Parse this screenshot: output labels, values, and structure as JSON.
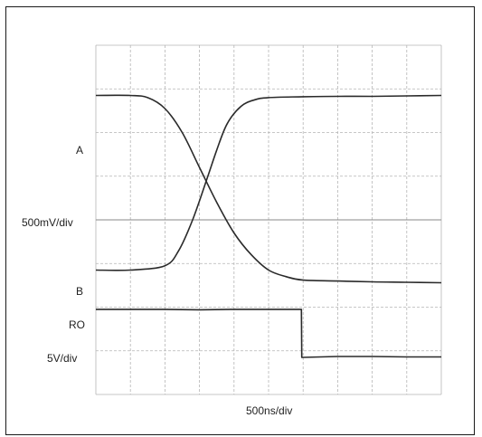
{
  "chart_data": {
    "type": "line",
    "title": "",
    "xlabel": "500ns/div",
    "grid": true,
    "divisions": {
      "horizontal": 10,
      "vertical": 8
    },
    "xlim": [
      0,
      10
    ],
    "ylim": [
      0,
      8
    ],
    "channel_labels": {
      "a": "A",
      "scale_diff": "500mV/div",
      "b": "B",
      "ro": "RO",
      "scale_logic": "5V/div"
    },
    "series": [
      {
        "name": "A",
        "x": [
          0,
          1,
          1.5,
          2,
          2.5,
          3,
          3.5,
          4,
          4.5,
          5,
          5.5,
          6,
          7,
          8,
          9,
          10
        ],
        "y": [
          6.85,
          6.85,
          6.8,
          6.55,
          6.0,
          5.2,
          4.4,
          3.7,
          3.2,
          2.85,
          2.7,
          2.62,
          2.6,
          2.58,
          2.57,
          2.56
        ]
      },
      {
        "name": "B",
        "x": [
          0,
          1,
          2,
          2.4,
          2.8,
          3.2,
          3.5,
          3.8,
          4.2,
          4.6,
          5,
          6,
          7,
          8,
          9,
          10
        ],
        "y": [
          2.85,
          2.85,
          2.95,
          3.3,
          4.0,
          4.9,
          5.6,
          6.2,
          6.6,
          6.75,
          6.8,
          6.82,
          6.83,
          6.83,
          6.84,
          6.85
        ]
      },
      {
        "name": "RO",
        "x": [
          0,
          1,
          2,
          3,
          4,
          5,
          5.95,
          5.96,
          6,
          7,
          8,
          9,
          10
        ],
        "y": [
          1.95,
          1.95,
          1.95,
          1.94,
          1.95,
          1.95,
          1.95,
          0.85,
          0.85,
          0.87,
          0.87,
          0.86,
          0.86
        ]
      }
    ],
    "colors": {
      "frame": "#1a1a1a",
      "grid": "#b5b5b5",
      "center_line": "#8a8a8a",
      "trace": "#2a2a2a",
      "text": "#222222"
    }
  }
}
